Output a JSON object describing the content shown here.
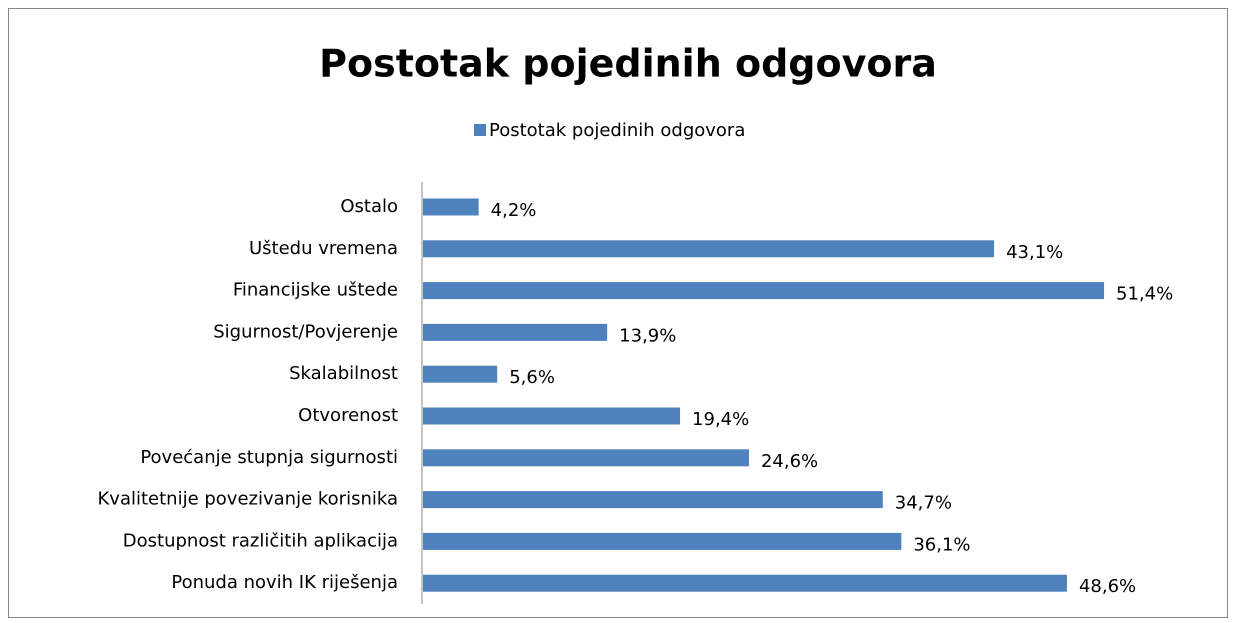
{
  "chart_data": {
    "type": "hbar",
    "title": "Postotak pojedinih odgovora",
    "categories": [
      "Ostalo",
      "Uštedu vremena",
      "Financijske uštede",
      "Sigurnost/Povjerenje",
      "Skalabilnost",
      "Otvorenost",
      "Povećanje stupnja sigurnosti",
      "Kvalitetnije povezivanje korisnika",
      "Dostupnost različitih aplikacija",
      "Ponuda novih IK riješenja"
    ],
    "series": [
      {
        "name": "Postotak pojedinih odgovora",
        "color": "#4f81bd",
        "values": [
          4.2,
          43.1,
          51.4,
          13.9,
          5.6,
          19.4,
          24.6,
          34.7,
          36.1,
          48.6
        ],
        "value_labels": [
          "4,2%",
          "43,1%",
          "51,4%",
          "13,9%",
          "5,6%",
          "19,4%",
          "24,6%",
          "34,7%",
          "36,1%",
          "48,6%"
        ]
      }
    ],
    "legend": "top"
  }
}
